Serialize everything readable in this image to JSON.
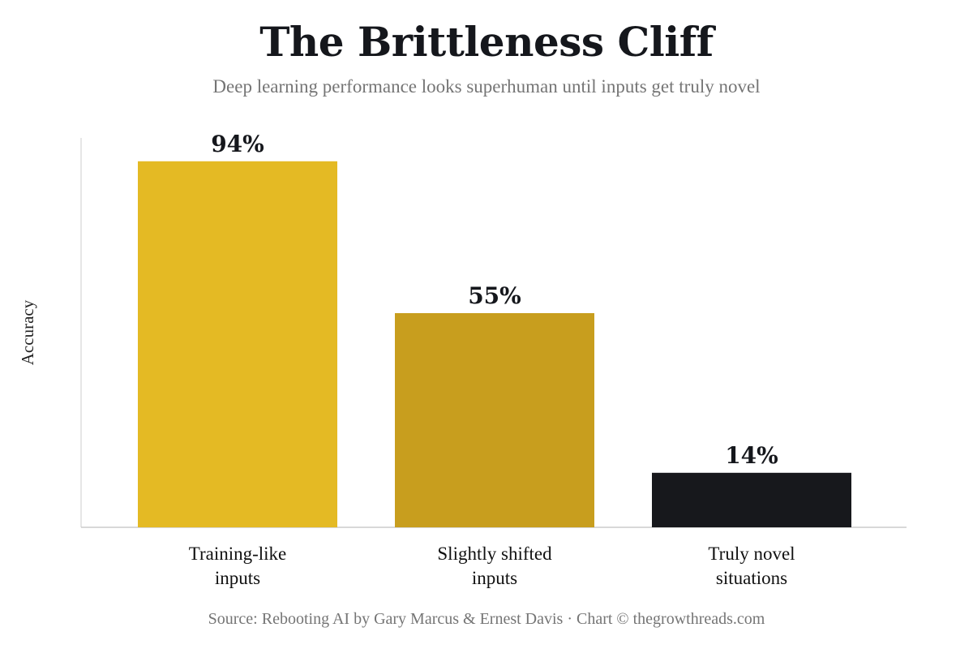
{
  "header": {
    "title": "The Brittleness Cliff",
    "subtitle": "Deep learning performance looks superhuman until inputs get truly novel"
  },
  "footer": {
    "source": "Source: Rebooting AI by Gary Marcus & Ernest Davis · Chart © thegrowthreads.com"
  },
  "chart_data": {
    "type": "bar",
    "title": "The Brittleness Cliff",
    "subtitle": "Deep learning performance looks superhuman until inputs get truly novel",
    "ylabel": "Accuracy",
    "xlabel": "",
    "categories": [
      [
        "Training-like",
        "inputs"
      ],
      [
        "Slightly shifted",
        "inputs"
      ],
      [
        "Truly novel",
        "situations"
      ]
    ],
    "values": [
      94,
      55,
      14
    ],
    "value_labels": [
      "94%",
      "55%",
      "14%"
    ],
    "colors": [
      "#E4BA24",
      "#C89E1E",
      "#17181C"
    ],
    "ylim": [
      0,
      100
    ],
    "grid": false,
    "legend": "none"
  }
}
